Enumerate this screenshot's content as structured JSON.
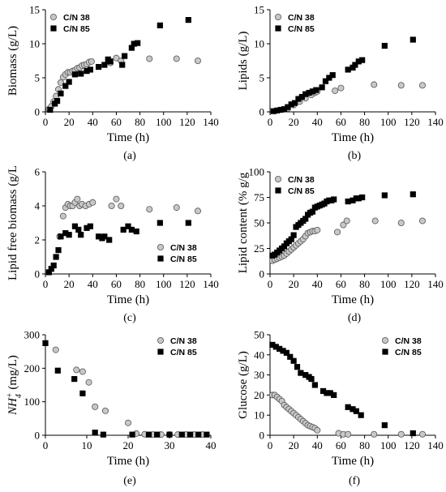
{
  "chart_data": [
    {
      "type": "scatter",
      "panel": "(a)",
      "xlabel": "Time (h)",
      "ylabel": "Biomass (g/L)",
      "xlim": [
        0,
        140
      ],
      "xticks": [
        0,
        20,
        40,
        60,
        80,
        100,
        120,
        140
      ],
      "ylim": [
        0,
        15
      ],
      "yticks": [
        0,
        5,
        10,
        15
      ],
      "legend": "top-left",
      "series": [
        {
          "name": "C/N 38",
          "marker": "circle",
          "color": "#c8c8c8",
          "x": [
            3,
            5,
            7,
            9,
            11,
            13,
            15,
            17,
            19,
            21,
            23,
            25,
            27,
            29,
            31,
            33,
            35,
            37,
            39,
            55,
            60,
            64,
            88,
            111,
            129
          ],
          "y": [
            0.4,
            0.8,
            1.5,
            2.3,
            3.3,
            4.3,
            5.1,
            5.5,
            5.8,
            5.8,
            6.0,
            6.1,
            6.4,
            6.5,
            6.8,
            6.9,
            7.0,
            7.3,
            7.4,
            7.2,
            7.9,
            7.5,
            7.8,
            7.8,
            7.5
          ]
        },
        {
          "name": "C/N 85",
          "marker": "square",
          "color": "#000000",
          "x": [
            4,
            8,
            10,
            13,
            17,
            20,
            25,
            30,
            35,
            38,
            45,
            50,
            53,
            55,
            65,
            67,
            73,
            75,
            78,
            97,
            121
          ],
          "y": [
            0.3,
            1.2,
            1.6,
            2.7,
            3.8,
            4.4,
            5.5,
            5.6,
            6.0,
            6.2,
            6.6,
            6.9,
            7.7,
            7.4,
            6.9,
            8.2,
            9.4,
            10.0,
            10.1,
            12.7,
            13.5
          ]
        }
      ]
    },
    {
      "type": "scatter",
      "panel": "(b)",
      "xlabel": "Time (h)",
      "ylabel": "Lipids (g/L)",
      "xlim": [
        0,
        140
      ],
      "xticks": [
        0,
        20,
        40,
        60,
        80,
        100,
        120,
        140
      ],
      "ylim": [
        0,
        15
      ],
      "yticks": [
        0,
        5,
        10,
        15
      ],
      "legend": "top-left",
      "series": [
        {
          "name": "C/N 38",
          "marker": "circle",
          "color": "#c8c8c8",
          "x": [
            15,
            20,
            25,
            30,
            35,
            38,
            40,
            55,
            60,
            88,
            111,
            129
          ],
          "y": [
            0.5,
            1.0,
            1.5,
            2.0,
            2.5,
            2.8,
            3.0,
            3.1,
            3.5,
            4.0,
            3.9,
            3.9
          ]
        },
        {
          "name": "C/N 85",
          "marker": "square",
          "color": "#000000",
          "x": [
            3,
            6,
            9,
            12,
            15,
            18,
            21,
            24,
            27,
            30,
            33,
            36,
            39,
            44,
            47,
            50,
            53,
            66,
            70,
            72,
            75,
            78,
            97,
            121
          ],
          "y": [
            0.1,
            0.2,
            0.3,
            0.4,
            0.7,
            1.1,
            1.3,
            1.9,
            2.2,
            2.6,
            2.8,
            3.0,
            3.2,
            3.6,
            4.5,
            5.0,
            5.4,
            6.2,
            6.5,
            6.9,
            7.4,
            7.6,
            9.7,
            10.6
          ]
        }
      ]
    },
    {
      "type": "scatter",
      "panel": "(c)",
      "xlabel": "Time (h)",
      "ylabel": "Lipid free biomass (g/L",
      "xlim": [
        0,
        140
      ],
      "xticks": [
        0,
        20,
        40,
        60,
        80,
        100,
        120,
        140
      ],
      "ylim": [
        0,
        6
      ],
      "yticks": [
        0,
        2,
        4,
        6
      ],
      "legend": "bottom-right",
      "series": [
        {
          "name": "C/N 38",
          "marker": "circle",
          "color": "#c8c8c8",
          "x": [
            12,
            15,
            17,
            19,
            21,
            23,
            25,
            27,
            29,
            31,
            34,
            37,
            40,
            56,
            60,
            64,
            88,
            111,
            129
          ],
          "y": [
            2.2,
            3.4,
            3.9,
            4.1,
            4.0,
            4.0,
            4.2,
            4.4,
            4.0,
            4.1,
            4.0,
            4.1,
            4.2,
            4.0,
            4.4,
            4.0,
            3.8,
            3.9,
            3.7
          ]
        },
        {
          "name": "C/N 85",
          "marker": "square",
          "color": "#000000",
          "x": [
            3,
            5,
            7,
            9,
            11,
            13,
            17,
            20,
            25,
            28,
            30,
            35,
            38,
            45,
            48,
            50,
            54,
            66,
            70,
            73,
            77,
            97,
            121
          ],
          "y": [
            0.1,
            0.3,
            0.5,
            1.0,
            1.4,
            2.2,
            2.4,
            2.3,
            2.8,
            2.6,
            2.3,
            2.7,
            2.8,
            2.2,
            2.1,
            2.2,
            2.0,
            2.6,
            2.8,
            2.6,
            2.5,
            3.0,
            3.0
          ]
        }
      ]
    },
    {
      "type": "scatter",
      "panel": "(d)",
      "xlabel": "Time (h)",
      "ylabel": "Lipid content (% g/g",
      "xlim": [
        0,
        140
      ],
      "xticks": [
        0,
        20,
        40,
        60,
        80,
        100,
        120,
        140
      ],
      "ylim": [
        0,
        100
      ],
      "yticks": [
        0,
        25,
        50,
        75,
        100
      ],
      "legend": "top-left",
      "series": [
        {
          "name": "C/N 38",
          "marker": "circle",
          "color": "#c8c8c8",
          "x": [
            2,
            4,
            6,
            8,
            10,
            12,
            14,
            16,
            18,
            20,
            22,
            24,
            26,
            28,
            30,
            32,
            34,
            36,
            38,
            40,
            57,
            62,
            65,
            89,
            111,
            129
          ],
          "y": [
            13,
            14,
            15,
            16,
            17,
            18,
            20,
            22,
            24,
            26,
            28,
            30,
            32,
            34,
            37,
            40,
            41,
            42,
            42,
            43,
            41,
            48,
            52,
            52,
            50,
            52
          ]
        },
        {
          "name": "C/N 85",
          "marker": "square",
          "color": "#000000",
          "x": [
            2,
            4,
            6,
            8,
            10,
            12,
            14,
            16,
            18,
            20,
            22,
            24,
            26,
            28,
            30,
            32,
            34,
            36,
            38,
            40,
            42,
            44,
            46,
            48,
            50,
            52,
            54,
            66,
            70,
            73,
            75,
            78,
            97,
            121
          ],
          "y": [
            18,
            19,
            21,
            23,
            25,
            27,
            30,
            32,
            34,
            38,
            46,
            48,
            50,
            52,
            54,
            58,
            60,
            61,
            65,
            66,
            67,
            68,
            69,
            71,
            72,
            72,
            73,
            71,
            72,
            74,
            74,
            75,
            77,
            78
          ]
        }
      ]
    },
    {
      "type": "scatter",
      "panel": "(e)",
      "xlabel": "Time (h)",
      "ylabel_base": "NH",
      "ylabel_sub": "4",
      "ylabel_sup": "+",
      "ylabel_unit": " (mg/L)",
      "xlim": [
        0,
        40
      ],
      "xticks": [
        0,
        10,
        20,
        30,
        40
      ],
      "ylim": [
        0,
        300
      ],
      "yticks": [
        0,
        100,
        200,
        300
      ],
      "legend": "top-right",
      "series": [
        {
          "name": "C/N 38",
          "marker": "circle",
          "color": "#c8c8c8",
          "x": [
            2.5,
            7.5,
            9,
            10.5,
            12,
            14.5,
            20,
            22,
            24,
            26,
            28,
            30,
            32,
            34,
            36,
            38
          ],
          "y": [
            255,
            195,
            190,
            158,
            85,
            73,
            37,
            5,
            3,
            2,
            2,
            2,
            2,
            2,
            2,
            2
          ]
        },
        {
          "name": "C/N 85",
          "marker": "square",
          "color": "#000000",
          "x": [
            0,
            3,
            7,
            9,
            12,
            14,
            21,
            25,
            27,
            30,
            33,
            35,
            37,
            39
          ],
          "y": [
            275,
            193,
            168,
            125,
            8,
            2,
            2,
            2,
            2,
            2,
            2,
            2,
            2,
            2
          ]
        }
      ]
    },
    {
      "type": "scatter",
      "panel": "(f)",
      "xlabel": "Time (h)",
      "ylabel": "Glucose (g/L)",
      "xlim": [
        0,
        140
      ],
      "xticks": [
        0,
        20,
        40,
        60,
        80,
        100,
        120,
        140
      ],
      "ylim": [
        0,
        50
      ],
      "yticks": [
        0,
        10,
        20,
        30,
        40,
        50
      ],
      "legend": "top-right",
      "series": [
        {
          "name": "C/N 38",
          "marker": "circle",
          "color": "#c8c8c8",
          "x": [
            2,
            4,
            6,
            8,
            10,
            12,
            14,
            16,
            18,
            20,
            22,
            24,
            26,
            28,
            30,
            32,
            34,
            36,
            38,
            40,
            58,
            62,
            66,
            88,
            111,
            129
          ],
          "y": [
            20,
            20,
            19,
            18,
            17,
            15,
            14,
            13,
            12,
            11,
            10,
            9,
            8,
            7,
            6,
            5,
            4.5,
            4,
            3.5,
            2.5,
            1,
            0.5,
            0.5,
            0.5,
            0.5,
            0.5
          ]
        },
        {
          "name": "C/N 85",
          "marker": "square",
          "color": "#000000",
          "x": [
            2,
            5,
            8,
            11,
            14,
            17,
            20,
            23,
            26,
            30,
            33,
            35,
            38,
            45,
            48,
            51,
            54,
            66,
            70,
            73,
            77,
            97,
            121
          ],
          "y": [
            45,
            44,
            43,
            42,
            41,
            39,
            37,
            34,
            31,
            30,
            29,
            28,
            25,
            22,
            21,
            21,
            20,
            14,
            13,
            12,
            10,
            5,
            1
          ]
        }
      ]
    }
  ]
}
